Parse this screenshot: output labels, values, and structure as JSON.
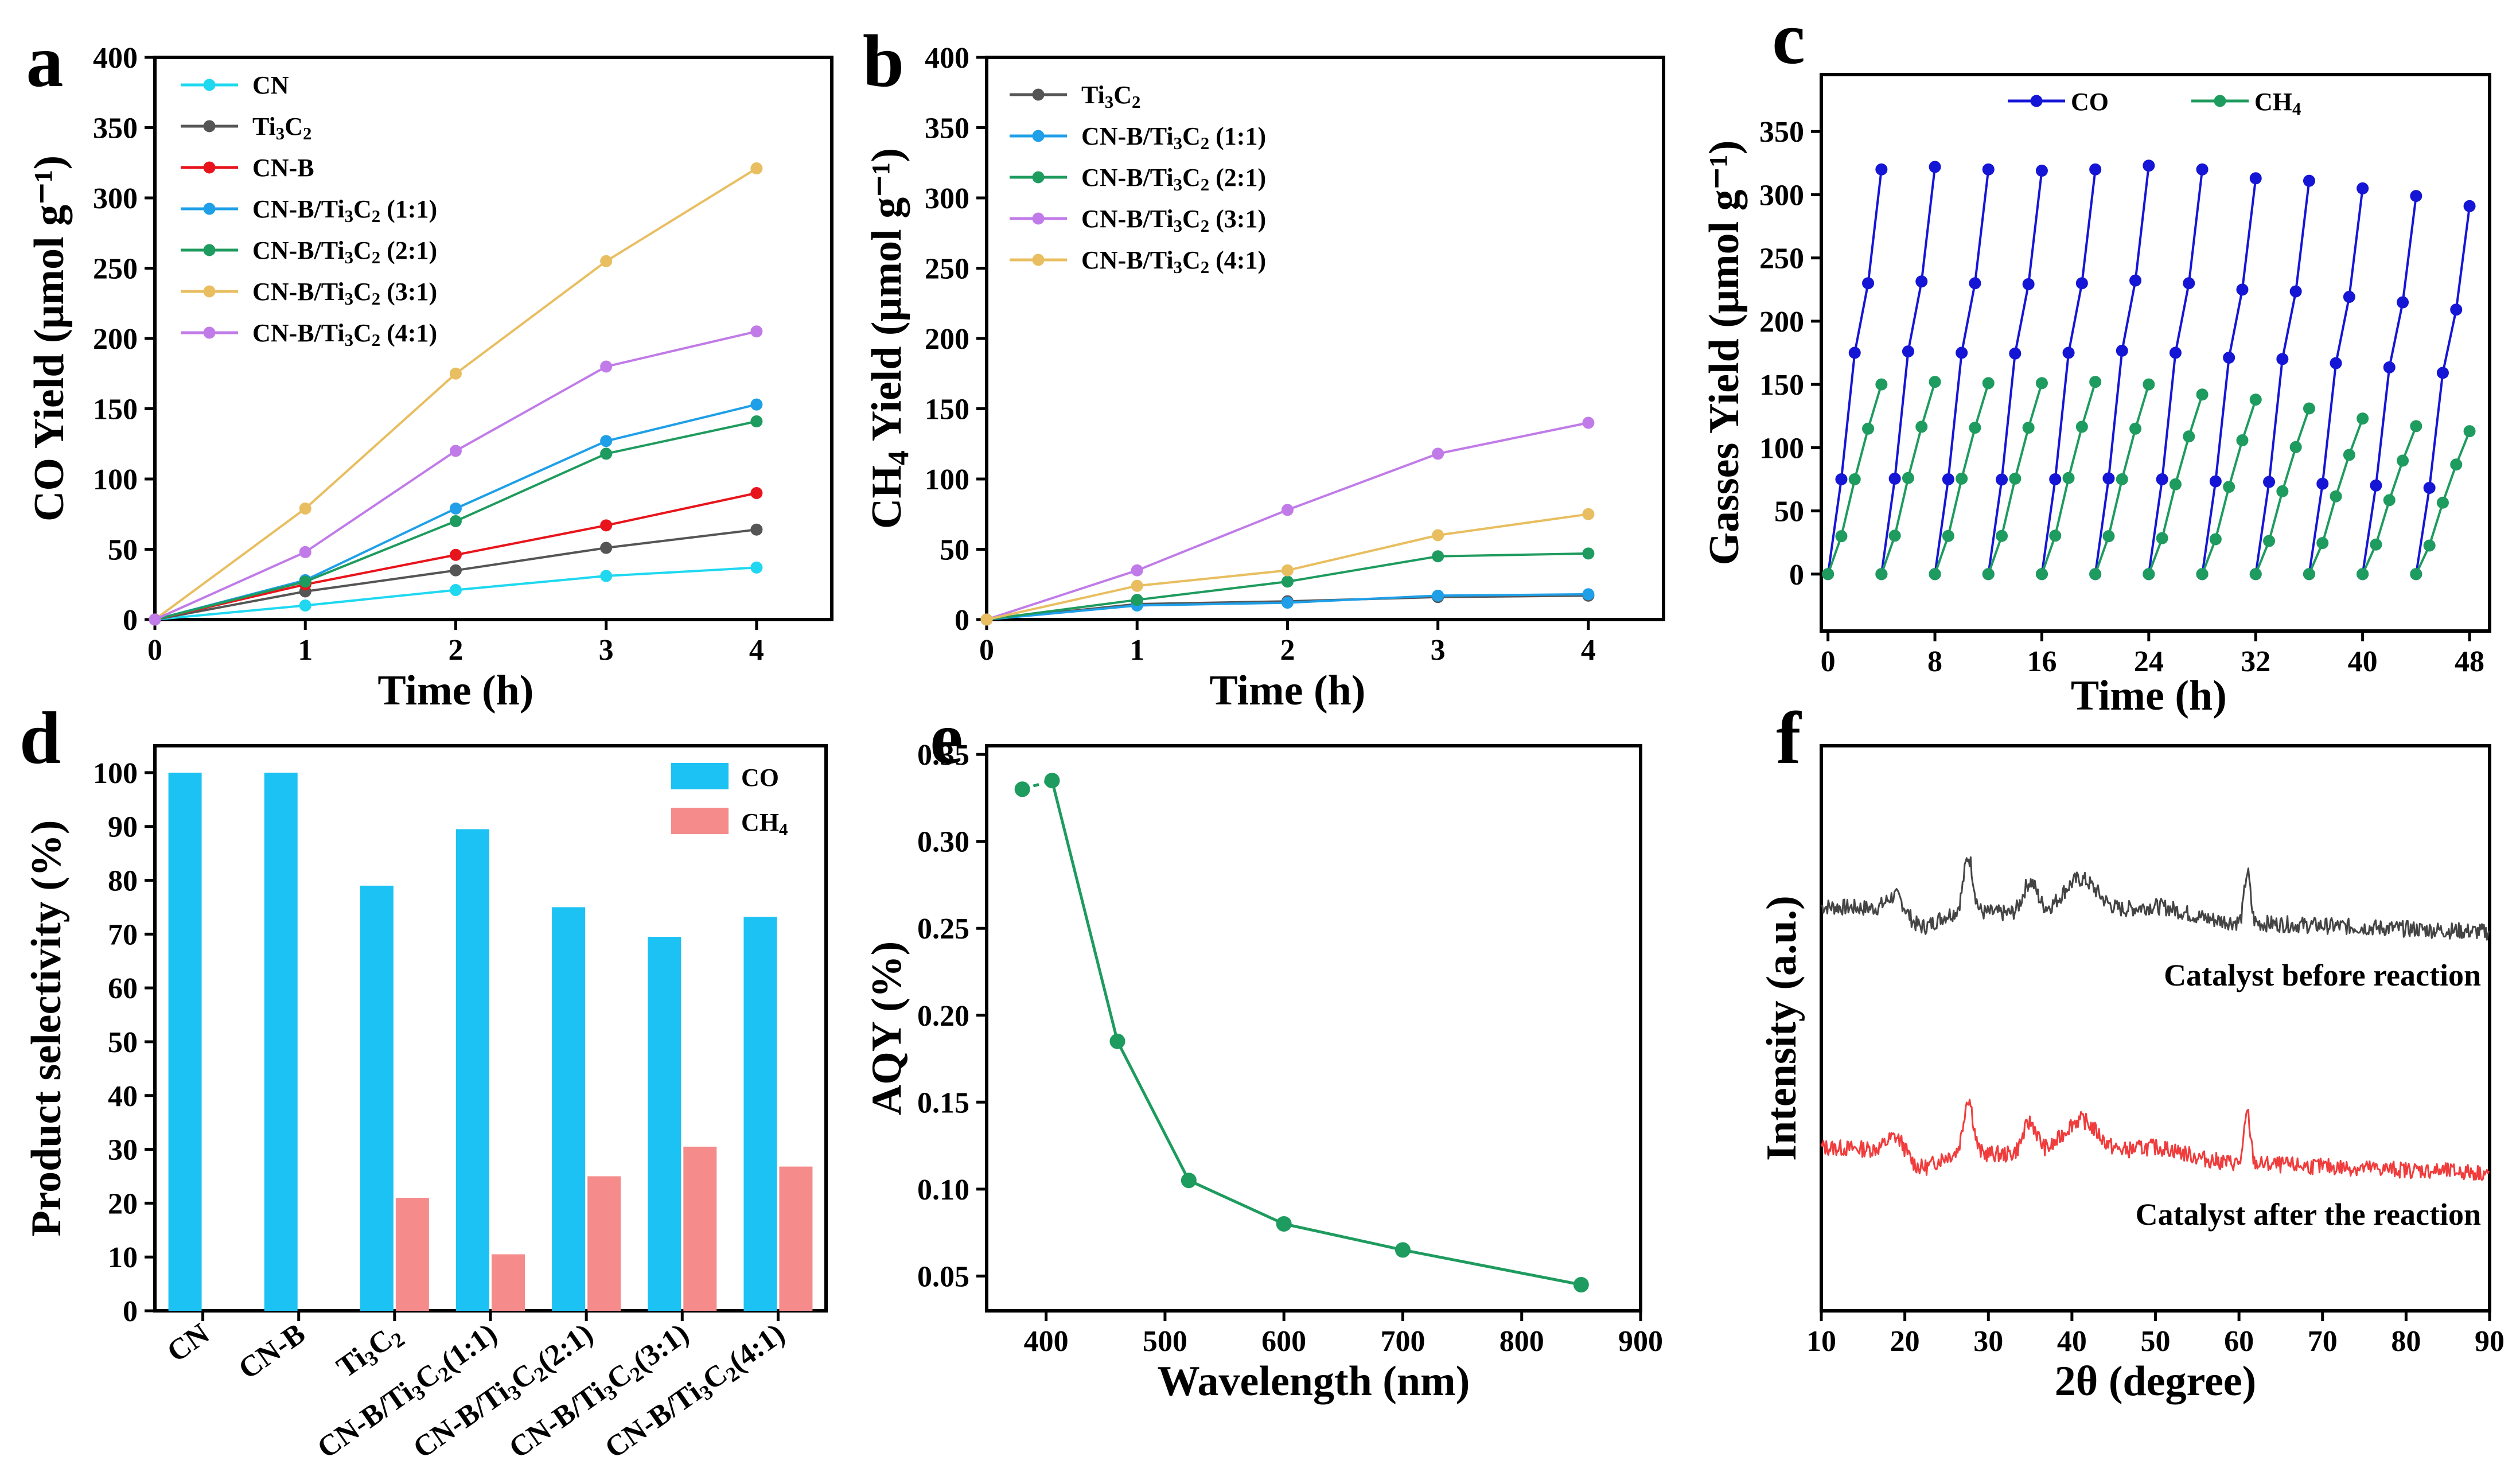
{
  "chart_data": [
    {
      "panel": "a",
      "type": "line",
      "xlabel": "Time (h)",
      "ylabel": "CO Yield (μmol g⁻¹)",
      "xlim": [
        0,
        4.5
      ],
      "ylim": [
        0,
        400
      ],
      "x": [
        0,
        1,
        2,
        3,
        4
      ],
      "xticks": [
        0,
        1,
        2,
        3,
        4
      ],
      "yticks": [
        0,
        50,
        100,
        150,
        200,
        250,
        300,
        350,
        400
      ],
      "legend_position": "top-left",
      "series": [
        {
          "name": "CN",
          "color": "#1FD8F0",
          "values": [
            0,
            10,
            21,
            31,
            37
          ]
        },
        {
          "name": "Ti3C2",
          "color": "#555555",
          "values": [
            0,
            20,
            35,
            51,
            64
          ]
        },
        {
          "name": "CN-B",
          "color": "#E8141C",
          "values": [
            0,
            25,
            46,
            67,
            90
          ]
        },
        {
          "name": "CN-B/Ti3C2 (1:1)",
          "color": "#1E9FE8",
          "values": [
            0,
            28,
            79,
            127,
            153
          ]
        },
        {
          "name": "CN-B/Ti3C2 (2:1)",
          "color": "#1E9B5E",
          "values": [
            0,
            27,
            70,
            118,
            141
          ]
        },
        {
          "name": "CN-B/Ti3C2 (3:1)",
          "color": "#E8BE60",
          "values": [
            0,
            79,
            175,
            255,
            321
          ]
        },
        {
          "name": "CN-B/Ti3C2 (4:1)",
          "color": "#C07BE8",
          "values": [
            0,
            48,
            120,
            180,
            205
          ]
        }
      ]
    },
    {
      "panel": "b",
      "type": "line",
      "xlabel": "Time (h)",
      "ylabel": "CH4 Yield (μmol g⁻¹)",
      "xlim": [
        0,
        4.5
      ],
      "ylim": [
        0,
        400
      ],
      "x": [
        0,
        1,
        2,
        3,
        4
      ],
      "xticks": [
        0,
        1,
        2,
        3,
        4
      ],
      "yticks": [
        0,
        50,
        100,
        150,
        200,
        250,
        300,
        350,
        400
      ],
      "legend_position": "top-left",
      "series": [
        {
          "name": "Ti3C2",
          "color": "#555555",
          "values": [
            0,
            11,
            13,
            16,
            17
          ]
        },
        {
          "name": "CN-B/Ti3C2 (1:1)",
          "color": "#1E9FE8",
          "values": [
            0,
            10,
            12,
            17,
            18
          ]
        },
        {
          "name": "CN-B/Ti3C2 (2:1)",
          "color": "#1E9B5E",
          "values": [
            0,
            14,
            27,
            45,
            47
          ]
        },
        {
          "name": "CN-B/Ti3C2 (3:1)",
          "color": "#C07BE8",
          "values": [
            0,
            35,
            78,
            118,
            140
          ]
        },
        {
          "name": "CN-B/Ti3C2 (4:1)",
          "color": "#E8BE60",
          "values": [
            0,
            24,
            35,
            60,
            75
          ]
        }
      ]
    },
    {
      "panel": "c",
      "type": "line",
      "xlabel": "Time (h)",
      "ylabel": "Gasses Yield (μmol g⁻¹)",
      "xlim": [
        -0.5,
        49.5
      ],
      "ylim": [
        -45,
        395
      ],
      "xticks": [
        0,
        8,
        16,
        24,
        32,
        40,
        48
      ],
      "yticks": [
        0,
        50,
        100,
        150,
        200,
        250,
        300,
        350
      ],
      "legend_position": "top",
      "cycles": 12,
      "series": [
        {
          "name": "CO",
          "color": "#1515D6",
          "cycle_max": [
            320,
            322,
            320,
            319,
            320,
            323,
            320,
            313,
            311,
            305,
            299,
            291
          ]
        },
        {
          "name": "CH4",
          "color": "#1E9B5E",
          "cycle_max": [
            150,
            152,
            151,
            151,
            152,
            150,
            142,
            138,
            131,
            123,
            117,
            113
          ]
        }
      ]
    },
    {
      "panel": "d",
      "type": "bar",
      "xlabel": "",
      "ylabel": "Product selectivity (%)",
      "ylim": [
        0,
        105
      ],
      "yticks": [
        0,
        10,
        20,
        30,
        40,
        50,
        60,
        70,
        80,
        90,
        100
      ],
      "categories": [
        "CN",
        "CN-B",
        "Ti3C2",
        "CN-B/Ti3C2(1:1)",
        "CN-B/Ti3C2(2:1)",
        "CN-B/Ti3C2(3:1)",
        "CN-B/Ti3C2(4:1)"
      ],
      "legend_position": "top-right",
      "series": [
        {
          "name": "CO",
          "color": "#1CC2F4",
          "values": [
            100,
            100,
            79,
            89.5,
            75,
            69.5,
            73.2
          ]
        },
        {
          "name": "CH4",
          "color": "#F58B8B",
          "values": [
            0,
            0,
            21,
            10.5,
            25,
            30.5,
            26.8
          ]
        }
      ]
    },
    {
      "panel": "e",
      "type": "line",
      "xlabel": "Wavelength (nm)",
      "ylabel": "AQY (%)",
      "xlim": [
        350,
        900
      ],
      "ylim": [
        0.03,
        0.355
      ],
      "xticks": [
        400,
        500,
        600,
        700,
        800,
        900
      ],
      "yticks": [
        0.05,
        0.1,
        0.15,
        0.2,
        0.25,
        0.3,
        0.35
      ],
      "color": "#1E9B5E",
      "x": [
        380,
        405,
        460,
        520,
        600,
        700,
        850
      ],
      "values": [
        0.33,
        0.335,
        0.185,
        0.105,
        0.08,
        0.065,
        0.045
      ]
    },
    {
      "panel": "f",
      "type": "line",
      "xlabel": "2θ (degree)",
      "ylabel": "Intensity (a.u.)",
      "xlim": [
        10,
        90
      ],
      "xticks": [
        10,
        20,
        30,
        40,
        50,
        60,
        70,
        80,
        90
      ],
      "series": [
        {
          "name": "Catalyst before reaction",
          "color": "#444444"
        },
        {
          "name": "Catalyst after the reaction",
          "color": "#F03C3C"
        }
      ]
    }
  ],
  "panel_labels": [
    "a",
    "b",
    "c",
    "d",
    "e",
    "f"
  ],
  "legend_text": {
    "a": [
      "CN",
      "Ti3C2",
      "CN-B",
      "CN-B/Ti3C2 (1:1)",
      "CN-B/Ti3C2 (2:1)",
      "CN-B/Ti3C2 (3:1)",
      "CN-B/Ti3C2 (4:1)"
    ],
    "b": [
      "Ti3C2",
      "CN-B/Ti3C2 (1:1)",
      "CN-B/Ti3C2 (2:1)",
      "CN-B/Ti3C2 (3:1)",
      "CN-B/Ti3C2 (4:1)"
    ],
    "c": [
      "CO",
      "CH4"
    ],
    "d": [
      "CO",
      "CH4"
    ]
  },
  "annotations": {
    "before": "Catalyst before reaction",
    "after": "Catalyst after the reaction"
  }
}
